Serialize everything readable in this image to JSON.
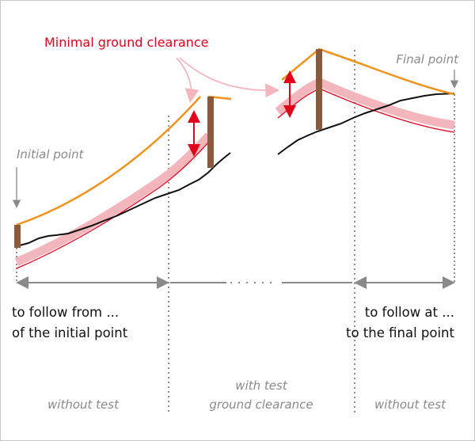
{
  "title": "Minimal ground clearance",
  "points": {
    "initial": "Initial point",
    "final": "Final point"
  },
  "left_caption": {
    "line1": "to follow from ...",
    "line2": "of the initial point"
  },
  "right_caption": {
    "line1": "to follow at ...",
    "line2": "to the final point"
  },
  "zones": {
    "left": "without test",
    "middle_line1": "with test",
    "middle_line2": "ground clearance",
    "right": "without test"
  },
  "colors": {
    "orange": "#f0921b",
    "red": "#e2001a",
    "pink": "#f4b6bd",
    "pole": "#8b5a3c",
    "ground": "#111111",
    "arrow_gray": "#8a8a8a"
  }
}
